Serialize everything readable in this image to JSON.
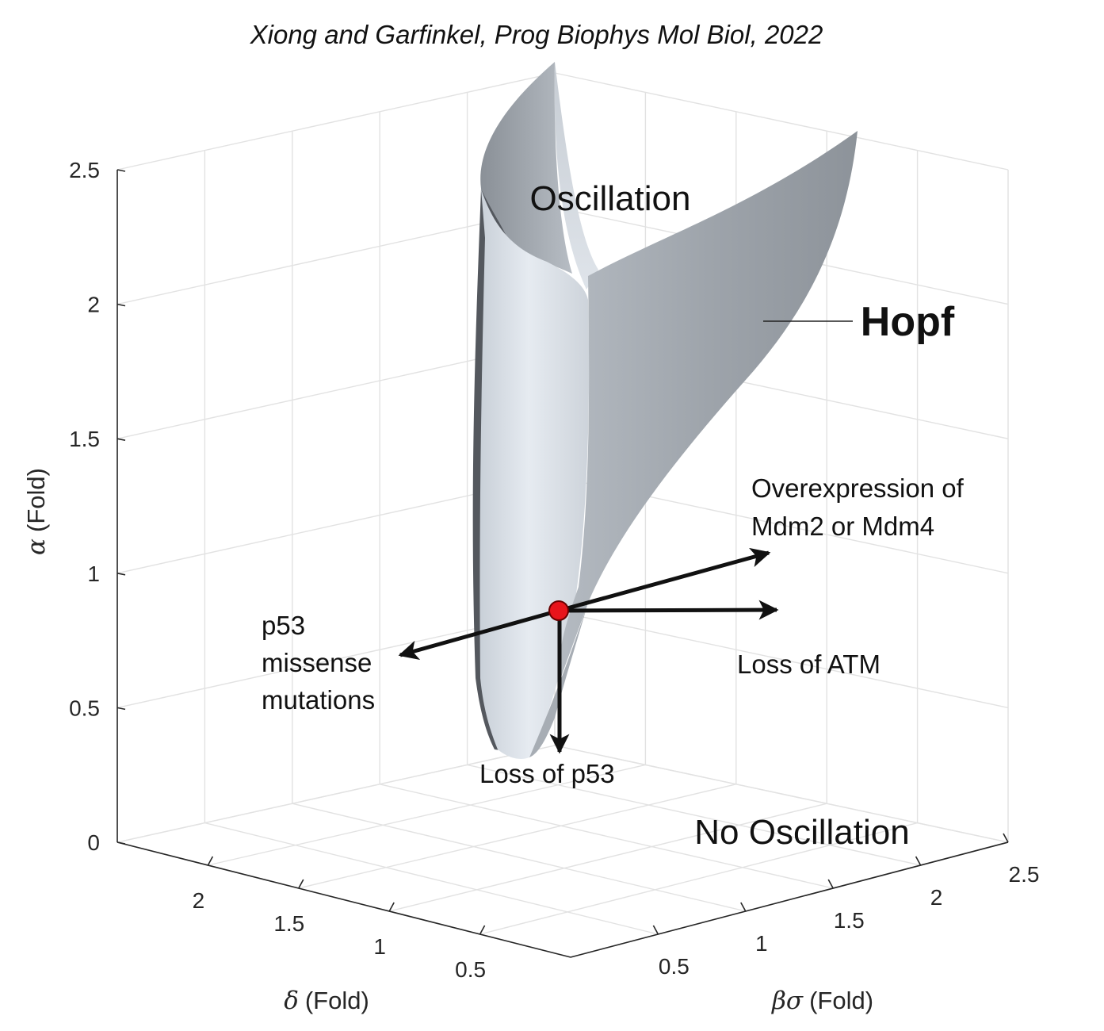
{
  "citation": "Xiong and Garfinkel, Prog Biophys Mol Biol, 2022",
  "colors": {
    "surface_light": "#dde3ea",
    "surface_mid": "#a9afb6",
    "surface_dark": "#4f5358",
    "point": "#e8141b",
    "arrow": "#111111"
  },
  "chart_data": {
    "type": "surface3d",
    "title": "",
    "axes": {
      "z": {
        "label": "(Fold)",
        "symbol": "α",
        "range": [
          0,
          2.5
        ],
        "ticks": [
          "0",
          "0.5",
          "1",
          "1.5",
          "2",
          "2.5"
        ]
      },
      "delta": {
        "label": "(Fold)",
        "symbol": "δ",
        "range": [
          0,
          2.5
        ],
        "ticks": [
          "2",
          "1.5",
          "1",
          "0.5"
        ]
      },
      "beta_sigma": {
        "label": "(Fold)",
        "symbol": "βσ",
        "range": [
          0,
          2.5
        ],
        "ticks": [
          "0.5",
          "1",
          "1.5",
          "2",
          "2.5"
        ]
      }
    },
    "grid": true,
    "surface": {
      "name": "Hopf"
    },
    "regions": {
      "inside": "Oscillation",
      "outside": "No Oscillation"
    },
    "reference_point": {
      "delta": 1,
      "beta_sigma": 1,
      "alpha": 1
    },
    "annotations": [
      {
        "id": "mdm",
        "lines": [
          "Overexpression of",
          "Mdm2 or Mdm4"
        ]
      },
      {
        "id": "atm",
        "lines": [
          "Loss of ATM"
        ]
      },
      {
        "id": "p53mis",
        "lines": [
          "p53",
          "missense",
          "mutations"
        ]
      },
      {
        "id": "p53loss",
        "lines": [
          "Loss of p53"
        ]
      }
    ]
  }
}
